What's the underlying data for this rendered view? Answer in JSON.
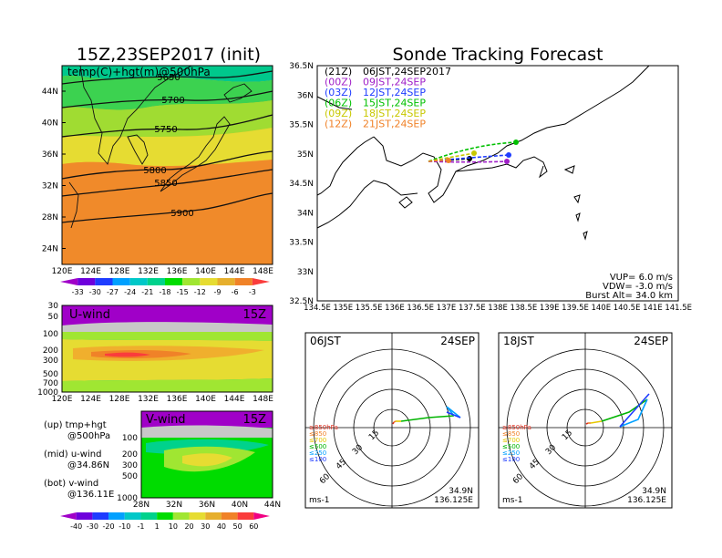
{
  "titles": {
    "left": "15Z,23SEP2017 (init)",
    "right": "Sonde Tracking Forecast"
  },
  "map500": {
    "label": "temp(C)+hgt(m)@500hPa",
    "lon_ticks": [
      "120E",
      "124E",
      "128E",
      "132E",
      "136E",
      "140E",
      "144E",
      "148E"
    ],
    "lat_ticks": [
      "44N",
      "40N",
      "36N",
      "32N",
      "28N",
      "24N"
    ],
    "contours": [
      "5650",
      "5700",
      "5750",
      "5800",
      "5850",
      "5900"
    ]
  },
  "temp_colorbar": {
    "labels": [
      "-33",
      "-30",
      "-27",
      "-24",
      "-21",
      "-18",
      "-15",
      "-12",
      "-9",
      "-6",
      "-3"
    ],
    "colors": [
      "#a000c8",
      "#6e00dc",
      "#1e3cff",
      "#00a0ff",
      "#00c8c8",
      "#00d28c",
      "#00dc00",
      "#a0e632",
      "#e6dc32",
      "#e6af2d",
      "#f08228",
      "#fa3c3c"
    ]
  },
  "uwind": {
    "label": "U-wind",
    "time": "15Z",
    "p_ticks": [
      "30",
      "50",
      "100",
      "200",
      "300",
      "500",
      "700",
      "1000"
    ],
    "lon_ticks": [
      "120E",
      "124E",
      "128E",
      "132E",
      "136E",
      "140E",
      "144E",
      "148E"
    ]
  },
  "vwind": {
    "label": "V-wind",
    "time": "15Z",
    "p_ticks": [
      "100",
      "200",
      "300",
      "500",
      "1000"
    ],
    "lat_ticks": [
      "28N",
      "32N",
      "36N",
      "40N",
      "44N"
    ]
  },
  "legend_text": {
    "up": "(up)  tmp+hgt",
    "up2": "@500hPa",
    "mid": "(mid)  u-wind",
    "mid2": "@34.86N",
    "bot": "(bot)  v-wind",
    "bot2": "@136.11E"
  },
  "wind_colorbar": {
    "labels": [
      "-40",
      "-30",
      "-20",
      "-10",
      "-1",
      "1",
      "10",
      "20",
      "30",
      "40",
      "50",
      "60"
    ],
    "colors": [
      "#a000c8",
      "#6e00dc",
      "#1e3cff",
      "#00a0ff",
      "#00c8c8",
      "#00d28c",
      "#00dc00",
      "#a0e632",
      "#e6dc32",
      "#e6af2d",
      "#f08228",
      "#fa3c3c",
      "#f00082"
    ]
  },
  "track_map": {
    "lat_ticks": [
      "36.5N",
      "36N",
      "35.5N",
      "35N",
      "34.5N",
      "34N",
      "33.5N",
      "33N",
      "32.5N"
    ],
    "lon_ticks": [
      "134.5E",
      "135E",
      "135.5E",
      "136E",
      "136.5E",
      "137E",
      "137.5E",
      "138E",
      "138.5E",
      "139E",
      "139.5E",
      "140E",
      "140.5E",
      "141E",
      "141.5E"
    ],
    "launches": [
      {
        "utc": "(21Z)",
        "jst": "06JST,24SEP2017",
        "color": "#000000"
      },
      {
        "utc": "(00Z)",
        "jst": "09JST,24SEP",
        "color": "#a020c8"
      },
      {
        "utc": "(03Z)",
        "jst": "12JST,24SEP",
        "color": "#1e3cff"
      },
      {
        "utc": "(06Z)",
        "jst": "15JST,24SEP",
        "color": "#00c000"
      },
      {
        "utc": "(09Z)",
        "jst": "18JST,24SEP",
        "color": "#c8c800"
      },
      {
        "utc": "(12Z)",
        "jst": "21JST,24SEP",
        "color": "#f08228"
      }
    ],
    "params": {
      "vup": "VUP=  6.0  m/s",
      "vdw": "VDW= -3.0  m/s",
      "burst": "Burst Alt=  34.0  km"
    }
  },
  "hodo1": {
    "time": "06JST",
    "date": "24SEP",
    "lat": "34.9N",
    "lon": "136.125E",
    "unit": "ms-1",
    "rings": [
      "15",
      "30",
      "45",
      "60"
    ],
    "levels": [
      "≥850hPa",
      "≤850",
      "≤700",
      "≤500",
      "≤250",
      "≤100"
    ]
  },
  "hodo2": {
    "time": "18JST",
    "date": "24SEP",
    "lat": "34.9N",
    "lon": "136.125E",
    "unit": "ms-1",
    "rings": [
      "15",
      "30",
      "45",
      "60"
    ],
    "levels": [
      "≥850hPa",
      "≤850",
      "≤700",
      "≤500",
      "≤250",
      "≤100"
    ]
  },
  "level_colors": [
    "#e03020",
    "#f08228",
    "#e6c800",
    "#00b400",
    "#00a0ff",
    "#1e3cff"
  ]
}
